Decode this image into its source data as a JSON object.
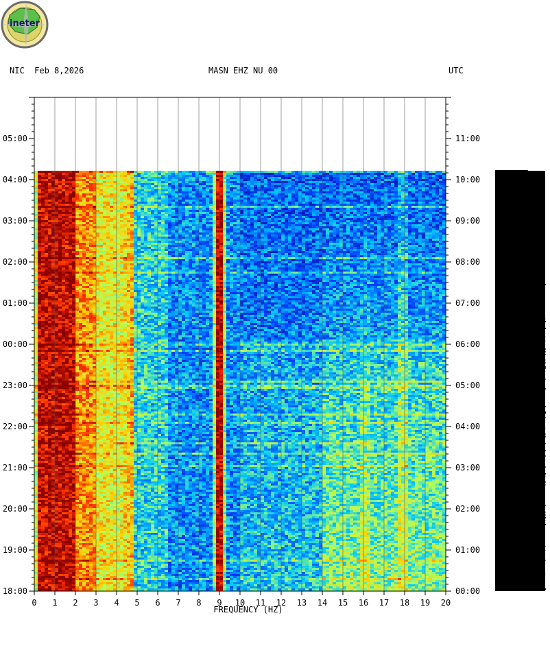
{
  "header": {
    "left": "NIC  Feb 8,2026",
    "center": "MASN EHZ NU 00",
    "right": "UTC"
  },
  "logo": {
    "text": "ineter"
  },
  "chart_data": {
    "type": "heatmap",
    "title": "MASN EHZ NU 00",
    "xlabel": "FREQUENCY (HZ)",
    "xlim": [
      0,
      20
    ],
    "x_ticks": [
      "0",
      "1",
      "2",
      "3",
      "4",
      "5",
      "6",
      "7",
      "8",
      "9",
      "10",
      "11",
      "12",
      "13",
      "14",
      "15",
      "16",
      "17",
      "18",
      "19",
      "20"
    ],
    "y_left_ticks": [
      "05:00",
      "04:00",
      "03:00",
      "02:00",
      "01:00",
      "00:00",
      "23:00",
      "22:00",
      "21:00",
      "20:00",
      "19:00",
      "18:00"
    ],
    "y_right_ticks": [
      "11:00",
      "10:00",
      "09:00",
      "08:00",
      "07:00",
      "06:00",
      "05:00",
      "04:00",
      "03:00",
      "02:00",
      "01:00",
      "00:00"
    ],
    "left_timezone": "NIC",
    "right_timezone": "UTC",
    "data_start": "18:00",
    "data_end": "04:13",
    "vertical_gridlines": true,
    "colormap": [
      "#00008b",
      "#0044ff",
      "#00c8ff",
      "#b0ff60",
      "#ffd000",
      "#ff3000",
      "#8b0000"
    ],
    "dominant_bands_hz": [
      {
        "range": [
          0.3,
          2.0
        ],
        "level": "very high"
      },
      {
        "range": [
          2.0,
          4.9
        ],
        "level": "high"
      },
      {
        "range": [
          8.85,
          9.15
        ],
        "level": "very high"
      }
    ],
    "amplitude_trace": {
      "color": "#000000",
      "position": "right"
    }
  }
}
